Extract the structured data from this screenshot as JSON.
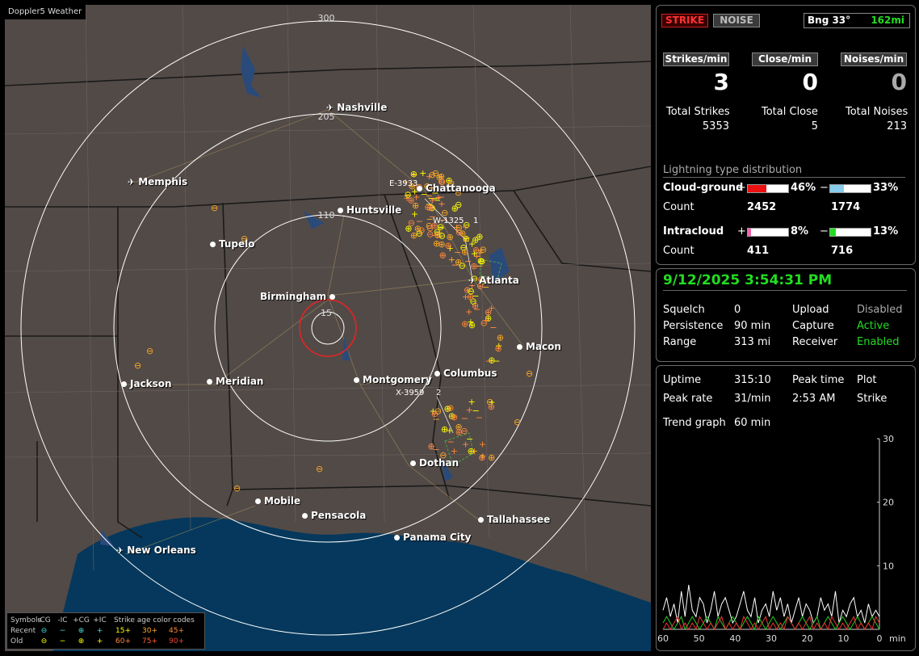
{
  "app": {
    "title": "Doppler5 Weather"
  },
  "map": {
    "ring_labels": [
      "300",
      "205",
      "110",
      "15"
    ],
    "cities": [
      {
        "name": "Nashville",
        "icon": "airport-icon"
      },
      {
        "name": "Memphis",
        "icon": "airport-icon"
      },
      {
        "name": "Chattanooga",
        "icon": "city-dot-icon"
      },
      {
        "name": "Huntsville",
        "icon": "city-dot-icon"
      },
      {
        "name": "Tupelo",
        "icon": "city-dot-icon"
      },
      {
        "name": "Atlanta",
        "icon": "airport-icon"
      },
      {
        "name": "Birmingham",
        "icon": "city-dot-icon"
      },
      {
        "name": "Macon",
        "icon": "city-dot-icon"
      },
      {
        "name": "Jackson",
        "icon": "city-dot-icon"
      },
      {
        "name": "Meridian",
        "icon": "city-dot-icon"
      },
      {
        "name": "Montgomery",
        "icon": "city-dot-icon"
      },
      {
        "name": "Columbus",
        "icon": "city-dot-icon"
      },
      {
        "name": "Dothan",
        "icon": "city-dot-icon"
      },
      {
        "name": "Mobile",
        "icon": "city-dot-icon"
      },
      {
        "name": "Pensacola",
        "icon": "city-dot-icon"
      },
      {
        "name": "Tallahassee",
        "icon": "city-dot-icon"
      },
      {
        "name": "Panama City",
        "icon": "city-dot-icon"
      },
      {
        "name": "New Orleans",
        "icon": "airport-icon"
      }
    ],
    "cell_labels": [
      "E-3933",
      "W-1325",
      "1",
      "X-3959",
      "2"
    ]
  },
  "legend": {
    "symbols_label": "Symbols",
    "cols": [
      "-CG",
      "-IC",
      "+CG",
      "+IC"
    ],
    "age_title": "Strike age color codes",
    "recent_label": "Recent",
    "old_label": "Old",
    "recent_ages": [
      "15+",
      "30+",
      "45+"
    ],
    "old_ages": [
      "60+",
      "75+",
      "90+"
    ],
    "colors": {
      "15": "#ffff00",
      "30": "#ffaa22",
      "45": "#ff8833",
      "60": "#ff8844",
      "75": "#ff6633",
      "90": "#ee4433"
    }
  },
  "top": {
    "strike_btn": "STRIKE",
    "noise_btn": "NOISE",
    "bearing": "Bng 33°",
    "distance": "162mi",
    "strikes_label": "Strikes/min",
    "close_label": "Close/min",
    "noises_label": "Noises/min",
    "strikes_val": "3",
    "close_val": "0",
    "noises_val": "0",
    "total_strikes_label": "Total Strikes",
    "total_close_label": "Total Close",
    "total_noises_label": "Total Noises",
    "total_strikes": "5353",
    "total_close": "5",
    "total_noises": "213",
    "dist_title": "Lightning type distribution",
    "cg_label": "Cloud-ground",
    "ic_label": "Intracloud",
    "count_label": "Count",
    "plus": "+",
    "minus": "−",
    "cg_pos_pct": "46%",
    "cg_neg_pct": "33%",
    "cg_pos_count": "2452",
    "cg_neg_count": "1774",
    "ic_pos_pct": "8%",
    "ic_neg_pct": "13%",
    "ic_pos_count": "411",
    "ic_neg_count": "716",
    "cg_pos_frac": 0.46,
    "cg_neg_frac": 0.33,
    "ic_pos_frac": 0.08,
    "ic_neg_frac": 0.13
  },
  "status": {
    "datetime": "9/12/2025 3:54:31 PM",
    "squelch_label": "Squelch",
    "squelch": "0",
    "persistence_label": "Persistence",
    "persistence": "90 min",
    "range_label": "Range",
    "range": "313 mi",
    "upload_label": "Upload",
    "upload": "Disabled",
    "capture_label": "Capture",
    "capture": "Active",
    "receiver_label": "Receiver",
    "receiver": "Enabled"
  },
  "stats": {
    "uptime_label": "Uptime",
    "uptime": "315:10",
    "peak_time_label": "Peak time",
    "peak_time": "2:53 AM",
    "plot_label": "Plot",
    "plot": "Strike",
    "peak_rate_label": "Peak rate",
    "peak_rate": "31/min",
    "trend_label": "Trend graph",
    "trend": "60 min"
  },
  "chart_data": {
    "type": "line",
    "xlabel": "min",
    "x_ticks": [
      "60",
      "50",
      "40",
      "30",
      "20",
      "10",
      "0"
    ],
    "y_ticks": [
      "30",
      "20",
      "10"
    ],
    "ylim": [
      0,
      30
    ],
    "xlim": [
      60,
      0
    ],
    "series": [
      {
        "color": "#ffffff",
        "values": [
          3,
          5,
          2,
          4,
          1,
          6,
          2,
          7,
          3,
          2,
          5,
          4,
          1,
          3,
          6,
          2,
          4,
          5,
          3,
          1,
          2,
          4,
          6,
          3,
          2,
          5,
          1,
          3,
          4,
          2,
          6,
          3,
          5,
          2,
          4,
          1,
          3,
          5,
          2,
          4,
          3,
          1,
          2,
          5,
          3,
          4,
          2,
          6,
          1,
          3,
          2,
          4,
          5,
          2,
          3,
          1,
          4,
          2,
          3,
          2
        ]
      },
      {
        "color": "#22cc22",
        "values": [
          1,
          2,
          1,
          0,
          1,
          2,
          0,
          1,
          2,
          1,
          0,
          1,
          2,
          1,
          0,
          2,
          1,
          0,
          1,
          2,
          1,
          0,
          1,
          2,
          1,
          0,
          2,
          1,
          0,
          1,
          2,
          1,
          0,
          1,
          2,
          1,
          0,
          1,
          2,
          1,
          0,
          1,
          2,
          0,
          1,
          2,
          1,
          0,
          1,
          2,
          1,
          0,
          1,
          2,
          1,
          0,
          1,
          2,
          1,
          0
        ]
      },
      {
        "color": "#ee3333",
        "values": [
          0,
          1,
          0,
          1,
          2,
          0,
          1,
          0,
          1,
          0,
          2,
          1,
          0,
          1,
          0,
          1,
          2,
          0,
          1,
          0,
          1,
          0,
          2,
          1,
          0,
          1,
          0,
          1,
          2,
          0,
          1,
          0,
          1,
          0,
          2,
          1,
          0,
          1,
          0,
          1,
          2,
          0,
          1,
          0,
          1,
          0,
          2,
          1,
          0,
          1,
          0,
          1,
          2,
          0,
          1,
          0,
          1,
          0,
          2,
          1
        ]
      }
    ]
  }
}
